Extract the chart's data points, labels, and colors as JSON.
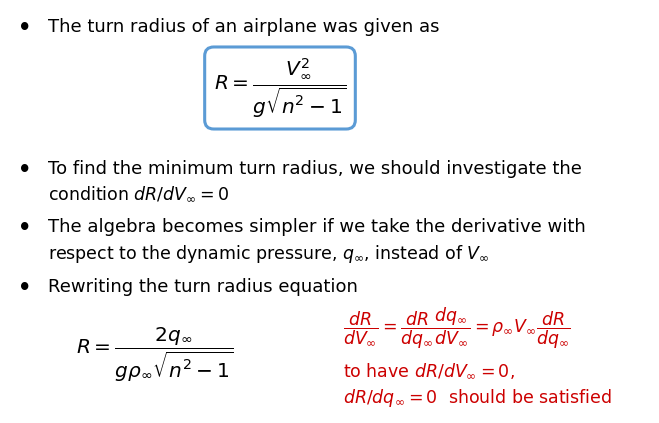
{
  "bg_color": "#ffffff",
  "bullet_color": "#000000",
  "text_color": "#000000",
  "red_color": "#cc0000",
  "box_edge_color": "#5b9bd5",
  "figsize": [
    6.59,
    4.23
  ],
  "dpi": 100,
  "bullet1_text": "The turn radius of an airplane was given as",
  "box_formula": "$R = \\dfrac{V_{\\infty}^{2}}{g\\sqrt{n^{2}-1}}$",
  "bullet2_line1": "To find the minimum turn radius, we should investigate the",
  "bullet2_line2": "condition $dR/dV_{\\infty} = 0$",
  "bullet3_line1": "The algebra becomes simpler if we take the derivative with",
  "bullet3_line2": "respect to the dynamic pressure, $q_{\\infty}$, instead of $V_{\\infty}$",
  "bullet4_text": "Rewriting the turn radius equation",
  "left_formula": "$R = \\dfrac{2q_{\\infty}}{g\\rho_{\\infty}\\sqrt{n^{2}-1}}$",
  "right_formula_line1": "$\\dfrac{dR}{dV_{\\infty}} = \\dfrac{dR}{dq_{\\infty}}\\dfrac{dq_{\\infty}}{dV_{\\infty}} = \\rho_{\\infty}V_{\\infty}\\dfrac{dR}{dq_{\\infty}}$",
  "right_formula_line2": "to have $dR/dV_{\\infty} = 0$,",
  "right_formula_line3": "$dR/dq_{\\infty} = 0$  should be satisfied"
}
